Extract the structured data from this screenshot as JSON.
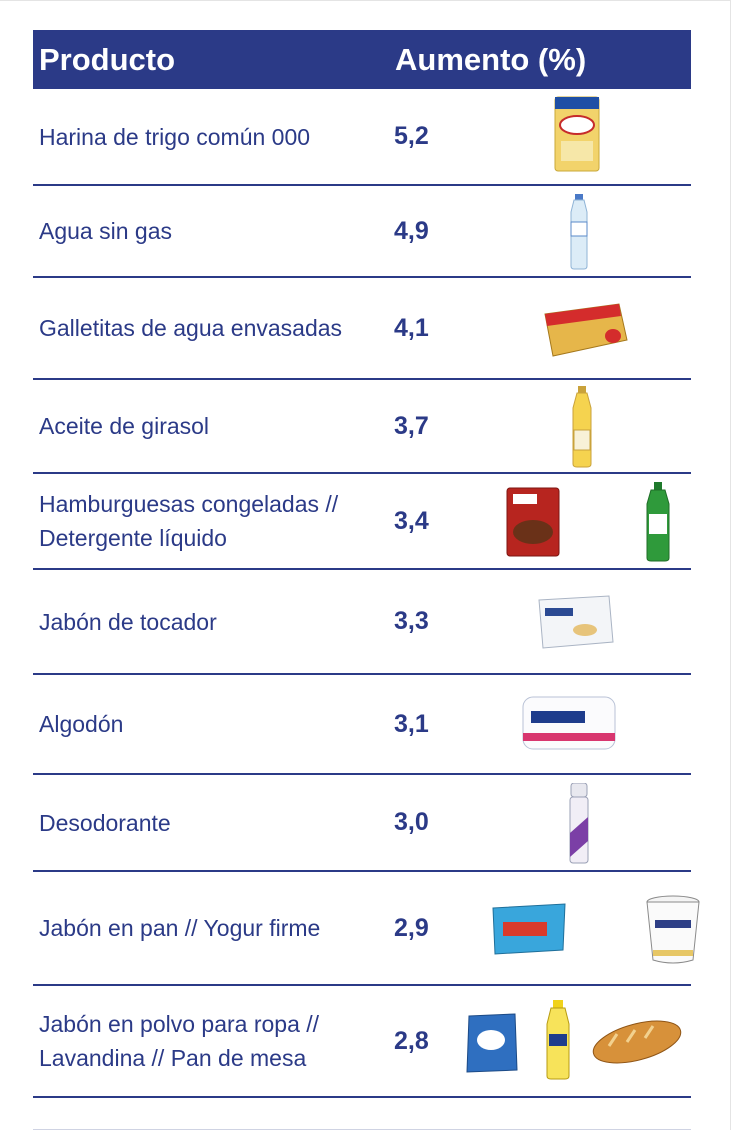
{
  "header": {
    "col_product": "Producto",
    "col_increase": "Aumento (%)"
  },
  "rows": [
    {
      "product": "Harina de trigo común 000",
      "increase": "5,2",
      "images": [
        "flour-bag-icon"
      ]
    },
    {
      "product": "Agua sin gas",
      "increase": "4,9",
      "images": [
        "water-bottle-icon"
      ]
    },
    {
      "product": "Galletitas de agua envasadas",
      "increase": "4,1",
      "images": [
        "crackers-pack-icon"
      ]
    },
    {
      "product": "Aceite de girasol",
      "increase": "3,7",
      "images": [
        "oil-bottle-icon"
      ]
    },
    {
      "product": "Hamburguesas congeladas // Detergente líquido",
      "increase": "3,4",
      "images": [
        "burger-box-icon",
        "detergent-bottle-icon"
      ]
    },
    {
      "product": "Jabón de tocador",
      "increase": "3,3",
      "images": [
        "soap-bar-box-icon"
      ]
    },
    {
      "product": "Algodón",
      "increase": "3,1",
      "images": [
        "cotton-pack-icon"
      ]
    },
    {
      "product": "Desodorante",
      "increase": "3,0",
      "images": [
        "deodorant-can-icon"
      ]
    },
    {
      "product": "Jabón en pan // Yogur firme",
      "increase": "2,9",
      "images": [
        "bar-soap-box-icon",
        "yogurt-cup-icon"
      ]
    },
    {
      "product": "Jabón en polvo para ropa // Lavandina // Pan de mesa",
      "increase": "2,8",
      "images": [
        "detergent-powder-bag-icon",
        "bleach-bottle-icon",
        "bread-loaf-icon"
      ]
    }
  ]
}
